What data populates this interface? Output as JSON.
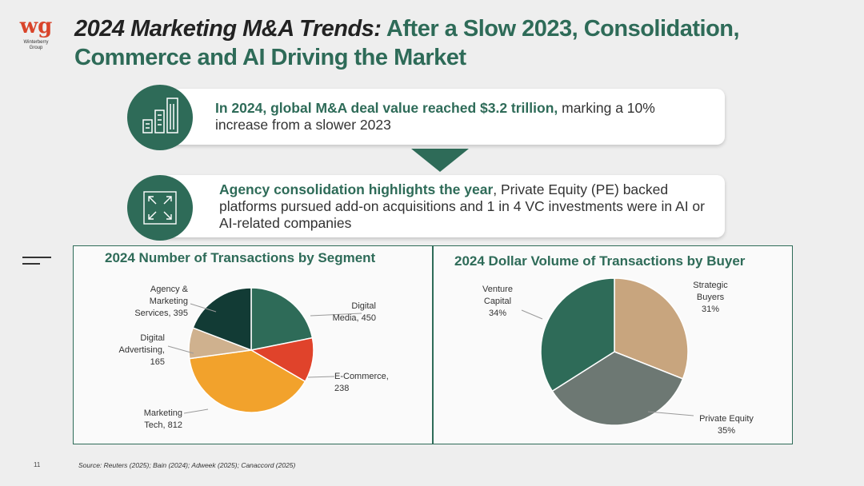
{
  "logo": {
    "mark": "wg",
    "text": "Winterberry Group"
  },
  "title": {
    "lead": "2024 Marketing M&A Trends:",
    "rest": " After a Slow 2023, Consolidation, Commerce and AI Driving the Market"
  },
  "card1": {
    "bold": "In 2024, global M&A deal value reached $3.2 trillion,",
    "rest": " marking a 10% increase from a slower 2023"
  },
  "card2": {
    "bold": "Agency consolidation highlights the year",
    "rest": ", Private Equity (PE) backed platforms pursued add-on acquisitions and 1 in 4 VC investments were in AI or AI-related companies"
  },
  "icons": {
    "card1": "buildings-icon",
    "card2": "expand-arrows-icon"
  },
  "colors": {
    "brand_green": "#2e6b58",
    "digital_media": "#2e6b58",
    "ecommerce": "#e0432b",
    "marketing_tech": "#f2a22c",
    "digital_advertising": "#cfb18e",
    "agency": "#123b35",
    "strategic": "#c8a57e",
    "private_equity": "#6d7873",
    "venture": "#2e6b58"
  },
  "chart_data": [
    {
      "type": "pie",
      "title": "2024 Number of Transactions by Segment",
      "slices": [
        {
          "label_lines": [
            "Digital",
            "Media, 450"
          ],
          "category": "Digital Media",
          "value": 450
        },
        {
          "label_lines": [
            "E-Commerce,",
            "238"
          ],
          "category": "E-Commerce",
          "value": 238
        },
        {
          "label_lines": [
            "Marketing",
            "Tech, 812"
          ],
          "category": "Marketing Tech",
          "value": 812
        },
        {
          "label_lines": [
            "Digital",
            "Advertising,",
            "165"
          ],
          "category": "Digital Advertising",
          "value": 165
        },
        {
          "label_lines": [
            "Agency &",
            "Marketing",
            "Services, 395"
          ],
          "category": "Agency & Marketing Services",
          "value": 395
        }
      ]
    },
    {
      "type": "pie",
      "title": "2024 Dollar Volume of Transactions by Buyer",
      "slices": [
        {
          "label_lines": [
            "Strategic",
            "Buyers",
            "31%"
          ],
          "category": "Strategic Buyers",
          "value": 31
        },
        {
          "label_lines": [
            "Private Equity",
            "35%"
          ],
          "category": "Private Equity",
          "value": 35
        },
        {
          "label_lines": [
            "Venture",
            "Capital",
            "34%"
          ],
          "category": "Venture Capital",
          "value": 34
        }
      ]
    }
  ],
  "footer": {
    "page": "11",
    "source": "Source: Reuters (2025); Bain (2024); Adweek (2025); Canaccord (2025)"
  }
}
